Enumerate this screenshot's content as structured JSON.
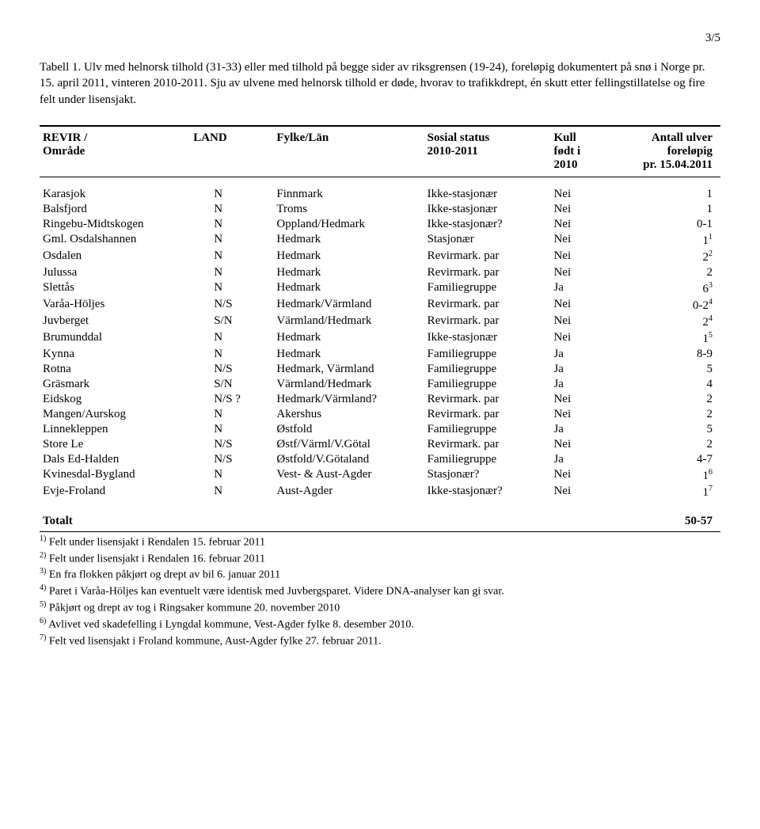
{
  "page_number": "3/5",
  "caption": "Tabell 1. Ulv med helnorsk tilhold (31-33) eller med tilhold på begge sider av riksgrensen (19-24), foreløpig dokumentert på snø i Norge pr. 15. april 2011, vinteren 2010-2011. Sju av ulvene med helnorsk tilhold er døde, hvorav to trafikkdrept, én skutt etter fellingstillatelse og fire felt under lisensjakt.",
  "headers": {
    "revir": "REVIR /\nOmråde",
    "land": "LAND",
    "fylke": "Fylke/Län",
    "status": "Sosial status\n2010-2011",
    "kull": "Kull\nfødt i\n2010",
    "antall": "Antall ulver\nforeløpig\npr. 15.04.2011"
  },
  "rows": [
    {
      "revir": "Karasjok",
      "land": "N",
      "fylke": "Finnmark",
      "status": "Ikke-stasjonær",
      "kull": "Nei",
      "antall": "1"
    },
    {
      "revir": "Balsfjord",
      "land": "N",
      "fylke": "Troms",
      "status": "Ikke-stasjonær",
      "kull": "Nei",
      "antall": "1"
    },
    {
      "revir": "Ringebu-Midtskogen",
      "land": "N",
      "fylke": "Oppland/Hedmark",
      "status": "Ikke-stasjonær?",
      "kull": "Nei",
      "antall": "0-1"
    },
    {
      "revir": "Gml. Osdalshannen",
      "land": "N",
      "fylke": "Hedmark",
      "status": "Stasjonær",
      "kull": "Nei",
      "antall": "1",
      "sup": "1"
    },
    {
      "revir": "Osdalen",
      "land": "N",
      "fylke": "Hedmark",
      "status": "Revirmark. par",
      "kull": "Nei",
      "antall": "2",
      "sup": "2"
    },
    {
      "revir": "Julussa",
      "land": "N",
      "fylke": "Hedmark",
      "status": "Revirmark. par",
      "kull": "Nei",
      "antall": "2"
    },
    {
      "revir": "Slettås",
      "land": "N",
      "fylke": "Hedmark",
      "status": "Familiegruppe",
      "kull": "Ja",
      "antall": "6",
      "sup": "3"
    },
    {
      "revir": "Varåa-Höljes",
      "land": "N/S",
      "fylke": "Hedmark/Värmland",
      "status": "Revirmark. par",
      "kull": "Nei",
      "antall": "0-2",
      "sup": "4"
    },
    {
      "revir": "Juvberget",
      "land": "S/N",
      "fylke": "Värmland/Hedmark",
      "status": "Revirmark. par",
      "kull": "Nei",
      "antall": "2",
      "sup": "4"
    },
    {
      "revir": "Brumunddal",
      "land": "N",
      "fylke": "Hedmark",
      "status": "Ikke-stasjonær",
      "kull": "Nei",
      "antall": "1",
      "sup": "5"
    },
    {
      "revir": "Kynna",
      "land": "N",
      "fylke": "Hedmark",
      "status": "Familiegruppe",
      "kull": "Ja",
      "antall": "8-9"
    },
    {
      "revir": "Rotna",
      "land": "N/S",
      "fylke": "Hedmark, Värmland",
      "status": "Familiegruppe",
      "kull": "Ja",
      "antall": "5"
    },
    {
      "revir": "Gräsmark",
      "land": "S/N",
      "fylke": "Värmland/Hedmark",
      "status": "Familiegruppe",
      "kull": "Ja",
      "antall": "4"
    },
    {
      "revir": "Eidskog",
      "land": "N/S ?",
      "fylke": "Hedmark/Värmland?",
      "status": "Revirmark. par",
      "kull": "Nei",
      "antall": "2"
    },
    {
      "revir": "Mangen/Aurskog",
      "land": "N",
      "fylke": "Akershus",
      "status": "Revirmark. par",
      "kull": "Nei",
      "antall": "2"
    },
    {
      "revir": "Linnekleppen",
      "land": "N",
      "fylke": "Østfold",
      "status": "Familiegruppe",
      "kull": "Ja",
      "antall": "5"
    },
    {
      "revir": "Store Le",
      "land": "N/S",
      "fylke": "Østf/Värml/V.Götal",
      "status": "Revirmark. par",
      "kull": "Nei",
      "antall": "2"
    },
    {
      "revir": "Dals Ed-Halden",
      "land": "N/S",
      "fylke": "Østfold/V.Götaland",
      "status": "Familiegruppe",
      "kull": "Ja",
      "antall": "4-7"
    },
    {
      "revir": "Kvinesdal-Bygland",
      "land": "N",
      "fylke": "Vest- & Aust-Agder",
      "status": "Stasjonær?",
      "kull": "Nei",
      "antall": "1",
      "sup": "6"
    },
    {
      "revir": "Evje-Froland",
      "land": "N",
      "fylke": "Aust-Agder",
      "status": "Ikke-stasjonær?",
      "kull": "Nei",
      "antall": "1",
      "sup": "7"
    }
  ],
  "total_label": "Totalt",
  "total_value": "50-57",
  "footnotes": [
    {
      "n": "1)",
      "text": "Felt under lisensjakt i Rendalen 15. februar 2011"
    },
    {
      "n": "2)",
      "text": "Felt under lisensjakt i Rendalen 16. februar 2011"
    },
    {
      "n": "3)",
      "text": "En fra flokken påkjørt og drept av bil 6. januar 2011"
    },
    {
      "n": "4)",
      "text": "Paret i Varåa-Höljes kan eventuelt være identisk med Juvbergsparet. Videre DNA-analyser kan gi svar."
    },
    {
      "n": "5)",
      "text": "Påkjørt og drept av tog i Ringsaker kommune 20. november 2010"
    },
    {
      "n": "6)",
      "text": "Avlivet ved skadefelling i Lyngdal kommune, Vest-Agder fylke 8. desember 2010."
    },
    {
      "n": "7)",
      "text": "Felt ved lisensjakt i Froland kommune, Aust-Agder fylke 27. februar 2011."
    }
  ]
}
